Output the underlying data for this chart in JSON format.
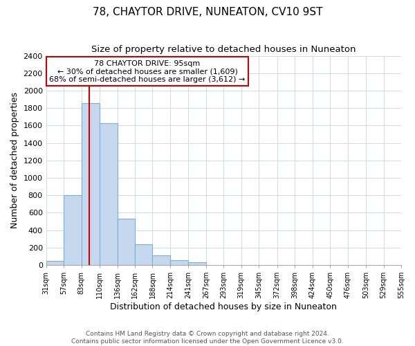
{
  "title": "78, CHAYTOR DRIVE, NUNEATON, CV10 9ST",
  "subtitle": "Size of property relative to detached houses in Nuneaton",
  "xlabel": "Distribution of detached houses by size in Nuneaton",
  "ylabel": "Number of detached properties",
  "bar_color": "#c5d8ee",
  "bar_edge_color": "#7bafd4",
  "bin_edges": [
    31,
    57,
    83,
    110,
    136,
    162,
    188,
    214,
    241,
    267,
    293,
    319,
    345,
    372,
    398,
    424,
    450,
    476,
    503,
    529,
    555
  ],
  "bar_heights": [
    50,
    800,
    1860,
    1630,
    530,
    240,
    110,
    55,
    30,
    0,
    0,
    0,
    0,
    0,
    0,
    0,
    0,
    0,
    0,
    0
  ],
  "property_size": 95,
  "red_line_color": "#cc0000",
  "annotation_title": "78 CHAYTOR DRIVE: 95sqm",
  "annotation_line1": "← 30% of detached houses are smaller (1,609)",
  "annotation_line2": "68% of semi-detached houses are larger (3,612) →",
  "annotation_box_color": "#ffffff",
  "annotation_box_edge": "#cc0000",
  "ylim": [
    0,
    2400
  ],
  "yticks": [
    0,
    200,
    400,
    600,
    800,
    1000,
    1200,
    1400,
    1600,
    1800,
    2000,
    2200,
    2400
  ],
  "footer_line1": "Contains HM Land Registry data © Crown copyright and database right 2024.",
  "footer_line2": "Contains public sector information licensed under the Open Government Licence v3.0.",
  "background_color": "#ffffff",
  "grid_color": "#d0dce8"
}
